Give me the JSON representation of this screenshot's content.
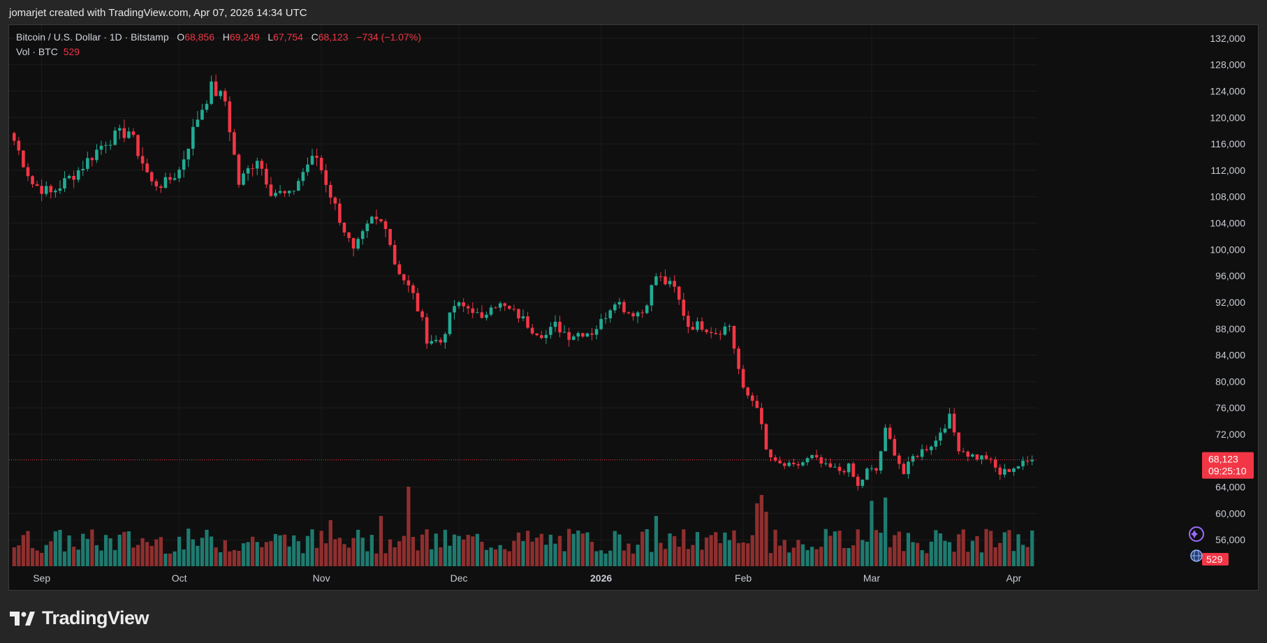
{
  "credit": "jomarjet created with TradingView.com, Apr 07, 2026 14:34 UTC",
  "legend": {
    "symbol": "Bitcoin / U.S. Dollar · 1D · Bitstamp",
    "o_label": "O",
    "o_value": "68,856",
    "h_label": "H",
    "h_value": "69,249",
    "l_label": "L",
    "l_value": "67,754",
    "c_label": "C",
    "c_value": "68,123",
    "change": "−734 (−1.07%)"
  },
  "volume_legend": {
    "label": "Vol · BTC",
    "value": "529"
  },
  "price_badge": {
    "price": "68,123",
    "countdown": "09:25:10"
  },
  "volume_badge": "529",
  "brand": "TradingView",
  "colors": {
    "up": "#22ab94",
    "down": "#f23645",
    "background": "#0f0f0f",
    "up_volume": "#1f7a6f",
    "down_volume": "#8f2f2f"
  },
  "chart_data": {
    "type": "candlestick",
    "title": "Bitcoin / U.S. Dollar · 1D · Bitstamp",
    "y_range": [
      52000,
      134000
    ],
    "y_ticks": [
      132000,
      128000,
      124000,
      120000,
      116000,
      112000,
      108000,
      104000,
      100000,
      96000,
      92000,
      88000,
      84000,
      80000,
      76000,
      72000,
      64000,
      60000,
      56000
    ],
    "y_tick_labels": [
      "132,000",
      "128,000",
      "124,000",
      "120,000",
      "116,000",
      "112,000",
      "108,000",
      "104,000",
      "100,000",
      "96,000",
      "92,000",
      "88,000",
      "84,000",
      "80,000",
      "76,000",
      "72,000",
      "64,000",
      "60,000",
      "56,000"
    ],
    "x_labels": [
      {
        "label": "Sep",
        "day": 6
      },
      {
        "label": "Oct",
        "day": 36
      },
      {
        "label": "Nov",
        "day": 67
      },
      {
        "label": "Dec",
        "day": 97
      },
      {
        "label": "2026",
        "day": 128
      },
      {
        "label": "Feb",
        "day": 159
      },
      {
        "label": "Mar",
        "day": 187
      },
      {
        "label": "Apr",
        "day": 218
      }
    ],
    "last_price": 68123,
    "price_key_points": [
      [
        0,
        116500
      ],
      [
        4,
        110000
      ],
      [
        8,
        108500
      ],
      [
        14,
        112000
      ],
      [
        20,
        116500
      ],
      [
        25,
        118000
      ],
      [
        30,
        110000
      ],
      [
        33,
        110000
      ],
      [
        36,
        112000
      ],
      [
        40,
        120000
      ],
      [
        43,
        124500
      ],
      [
        46,
        122500
      ],
      [
        49,
        110000
      ],
      [
        53,
        114000
      ],
      [
        56,
        109000
      ],
      [
        60,
        108000
      ],
      [
        64,
        113000
      ],
      [
        66,
        114000
      ],
      [
        70,
        106500
      ],
      [
        74,
        99500
      ],
      [
        78,
        104500
      ],
      [
        81,
        104000
      ],
      [
        83,
        98000
      ],
      [
        87,
        93000
      ],
      [
        89,
        89000
      ],
      [
        90,
        86500
      ],
      [
        93,
        86000
      ],
      [
        96,
        91500
      ],
      [
        100,
        91000
      ],
      [
        102,
        89000
      ],
      [
        104,
        92000
      ],
      [
        106,
        91500
      ],
      [
        110,
        90000
      ],
      [
        113,
        88000
      ],
      [
        116,
        87000
      ],
      [
        118,
        88500
      ],
      [
        121,
        87000
      ],
      [
        124,
        87500
      ],
      [
        126,
        87500
      ],
      [
        128,
        89000
      ],
      [
        131,
        92500
      ],
      [
        134,
        90500
      ],
      [
        137,
        90500
      ],
      [
        140,
        96000
      ],
      [
        144,
        94000
      ],
      [
        147,
        88500
      ],
      [
        150,
        88500
      ],
      [
        153,
        87500
      ],
      [
        156,
        88500
      ],
      [
        159,
        78500
      ],
      [
        162,
        76500
      ],
      [
        163,
        73000
      ],
      [
        164,
        69500
      ],
      [
        166,
        67500
      ],
      [
        170,
        67000
      ],
      [
        174,
        68500
      ],
      [
        177,
        67000
      ],
      [
        180,
        66500
      ],
      [
        182,
        67000
      ],
      [
        184,
        64000
      ],
      [
        186,
        66500
      ],
      [
        188,
        66500
      ],
      [
        190,
        72500
      ],
      [
        191,
        71000
      ],
      [
        194,
        66000
      ],
      [
        196,
        68500
      ],
      [
        201,
        71000
      ],
      [
        202,
        72500
      ],
      [
        204,
        74500
      ],
      [
        206,
        70000
      ],
      [
        208,
        69000
      ],
      [
        210,
        68500
      ],
      [
        212,
        68500
      ],
      [
        215,
        66000
      ],
      [
        218,
        67000
      ],
      [
        220,
        67500
      ],
      [
        222,
        68123
      ]
    ],
    "volume_peaks": [
      {
        "day": 86,
        "value": 0.95
      },
      {
        "day": 80,
        "value": 0.6
      },
      {
        "day": 163,
        "value": 0.85
      },
      {
        "day": 162,
        "value": 0.75
      },
      {
        "day": 164,
        "value": 0.65
      },
      {
        "day": 190,
        "value": 0.82
      },
      {
        "day": 187,
        "value": 0.78
      },
      {
        "day": 140,
        "value": 0.6
      },
      {
        "day": 69,
        "value": 0.55
      }
    ],
    "total_days": 223
  }
}
